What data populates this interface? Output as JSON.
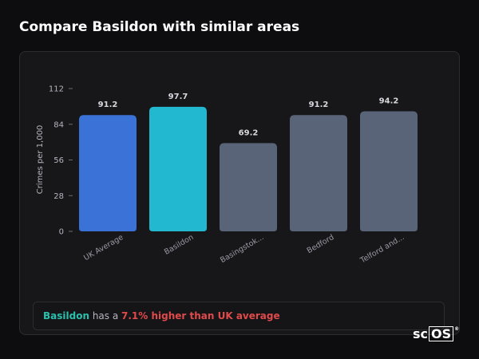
{
  "header": {
    "title": "Compare Basildon with similar areas"
  },
  "chart_data": {
    "type": "bar",
    "ylabel": "Crimes per 1,000",
    "xlabel": "",
    "ylim": [
      0,
      112
    ],
    "yticks": [
      0,
      28,
      56,
      84,
      112
    ],
    "categories": [
      "UK Average",
      "Basildon",
      "Basingstok...",
      "Bedford",
      "Telford and..."
    ],
    "values": [
      91.2,
      97.7,
      69.2,
      91.2,
      94.2
    ],
    "value_labels": [
      "91.2",
      "97.7",
      "69.2",
      "91.2",
      "94.2"
    ],
    "colors": [
      "#3a72d8",
      "#22b8cf",
      "#5a6478",
      "#5a6478",
      "#5a6478"
    ],
    "grid": false,
    "legend": "none"
  },
  "summary": {
    "area": "Basildon",
    "middle": " has a ",
    "stat": "7.1% higher than UK average"
  },
  "logo": {
    "text": "sc",
    "boxed": "OS",
    "mark": "®"
  }
}
